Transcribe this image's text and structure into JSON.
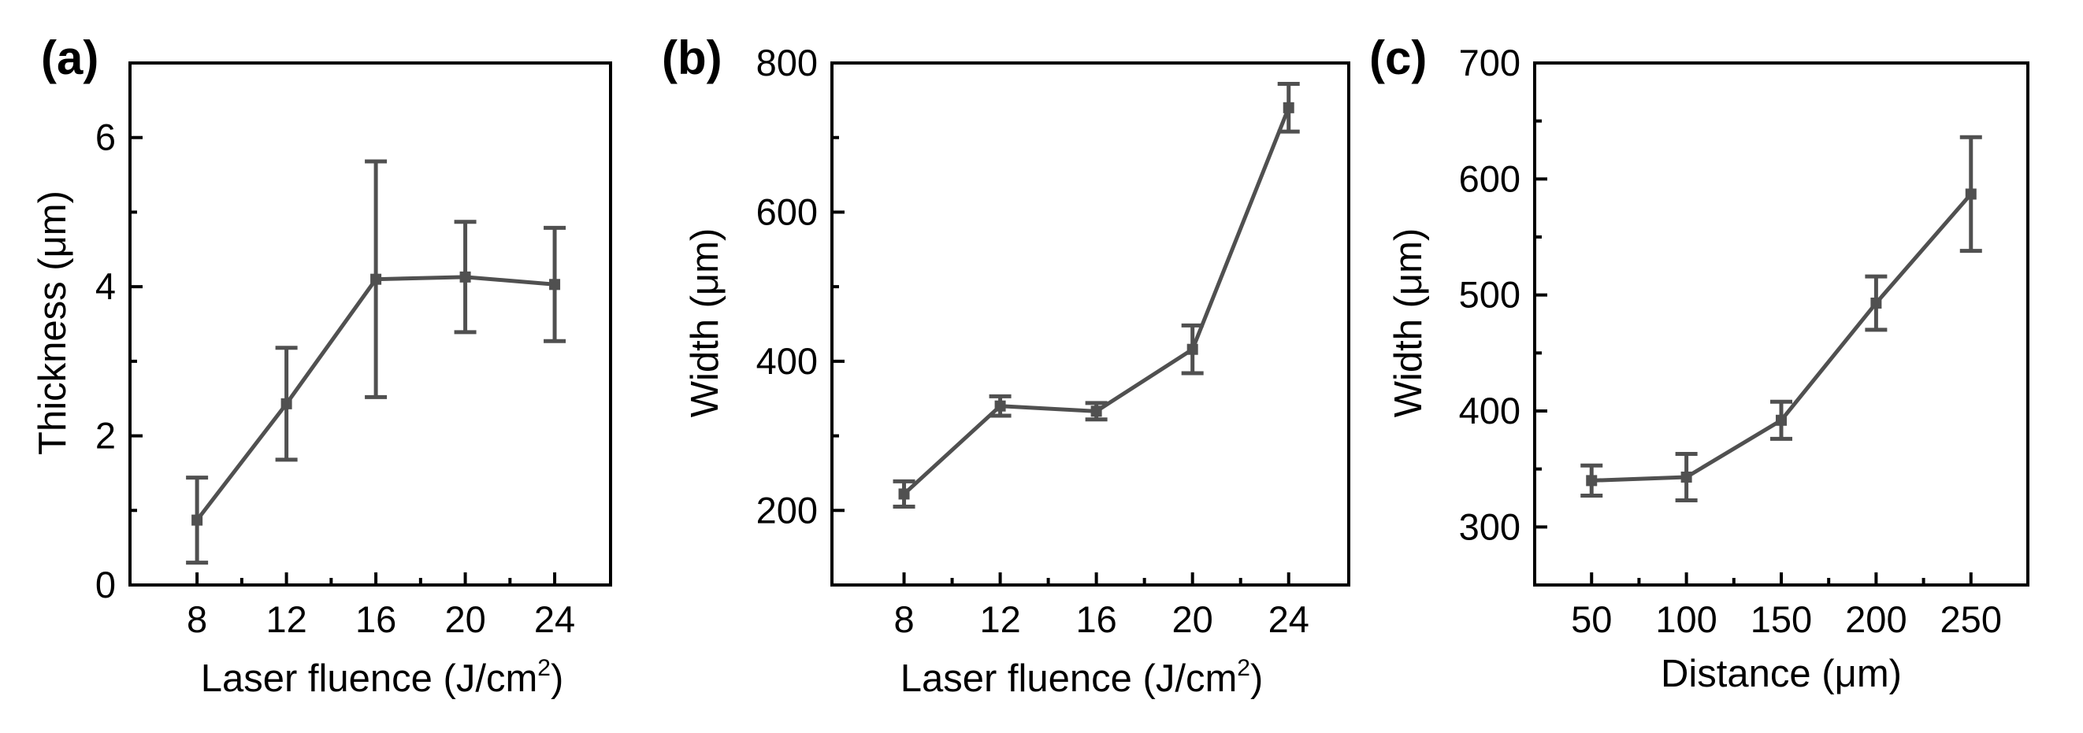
{
  "colors": {
    "series": "#505050",
    "axis": "#000000",
    "background": "#ffffff"
  },
  "chart_data": [
    {
      "type": "line",
      "panel_label": "(a)",
      "title": "",
      "xlabel": "Laser fluence (J/cm",
      "xlabel_sup": "2",
      "xlabel_close": ")",
      "ylabel": "Thickness (μm)",
      "xlim": [
        5,
        26.5
      ],
      "ylim": [
        0,
        7
      ],
      "x_ticks": [
        8,
        12,
        16,
        20,
        24
      ],
      "y_ticks": [
        0,
        2,
        4,
        6
      ],
      "x_tick_labels": [
        "8",
        "12",
        "16",
        "20",
        "24"
      ],
      "y_tick_labels": [
        "0",
        "2",
        "4",
        "6"
      ],
      "series": [
        {
          "name": "Thickness",
          "x": [
            8,
            12,
            16,
            20,
            24
          ],
          "y": [
            0.87,
            2.43,
            4.1,
            4.13,
            4.03
          ],
          "yerr": [
            0.57,
            0.75,
            1.58,
            0.74,
            0.76
          ]
        }
      ]
    },
    {
      "type": "line",
      "panel_label": "(b)",
      "title": "",
      "xlabel": "Laser fluence (J/cm",
      "xlabel_sup": "2",
      "xlabel_close": ")",
      "ylabel": "Width (μm)",
      "xlim": [
        5,
        26.5
      ],
      "ylim": [
        100,
        800
      ],
      "x_ticks": [
        8,
        12,
        16,
        20,
        24
      ],
      "y_ticks": [
        200,
        400,
        600,
        800
      ],
      "x_tick_labels": [
        "8",
        "12",
        "16",
        "20",
        "24"
      ],
      "y_tick_labels": [
        "200",
        "400",
        "600",
        "800"
      ],
      "series": [
        {
          "name": "Width",
          "x": [
            8,
            12,
            16,
            20,
            24
          ],
          "y": [
            222,
            340,
            333,
            416,
            740
          ],
          "yerr": [
            17,
            13,
            11,
            32,
            32
          ]
        }
      ]
    },
    {
      "type": "line",
      "panel_label": "(c)",
      "title": "",
      "xlabel": "Distance (μm)",
      "xlabel_sup": "",
      "xlabel_close": "",
      "ylabel": "Width (μm)",
      "xlim": [
        20,
        280
      ],
      "ylim": [
        250,
        700
      ],
      "x_ticks": [
        50,
        100,
        150,
        200,
        250
      ],
      "y_ticks": [
        300,
        400,
        500,
        600,
        700
      ],
      "x_tick_labels": [
        "50",
        "100",
        "150",
        "200",
        "250"
      ],
      "y_tick_labels": [
        "300",
        "400",
        "500",
        "600",
        "700"
      ],
      "series": [
        {
          "name": "Width",
          "x": [
            50,
            100,
            150,
            200,
            250
          ],
          "y": [
            340,
            343,
            392,
            493,
            587
          ],
          "yerr": [
            13,
            20,
            16,
            23,
            49
          ]
        }
      ]
    }
  ]
}
